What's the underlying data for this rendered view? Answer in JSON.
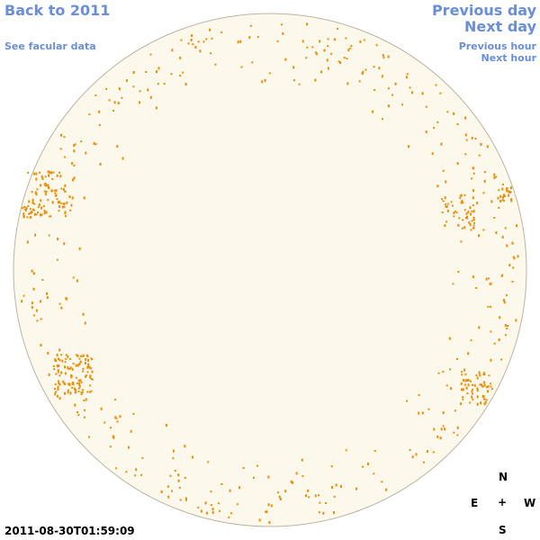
{
  "links": {
    "back": "Back to 2011",
    "facular": "See facular data",
    "previous_day": "Previous day",
    "next_day": "Next day",
    "previous_hour": "Previous hour",
    "next_hour": "Next hour"
  },
  "timestamp": "2011-08-30T01:59:09",
  "compass": {
    "north": "N",
    "south": "S",
    "east": "E",
    "west": "W",
    "center": "+"
  }
}
